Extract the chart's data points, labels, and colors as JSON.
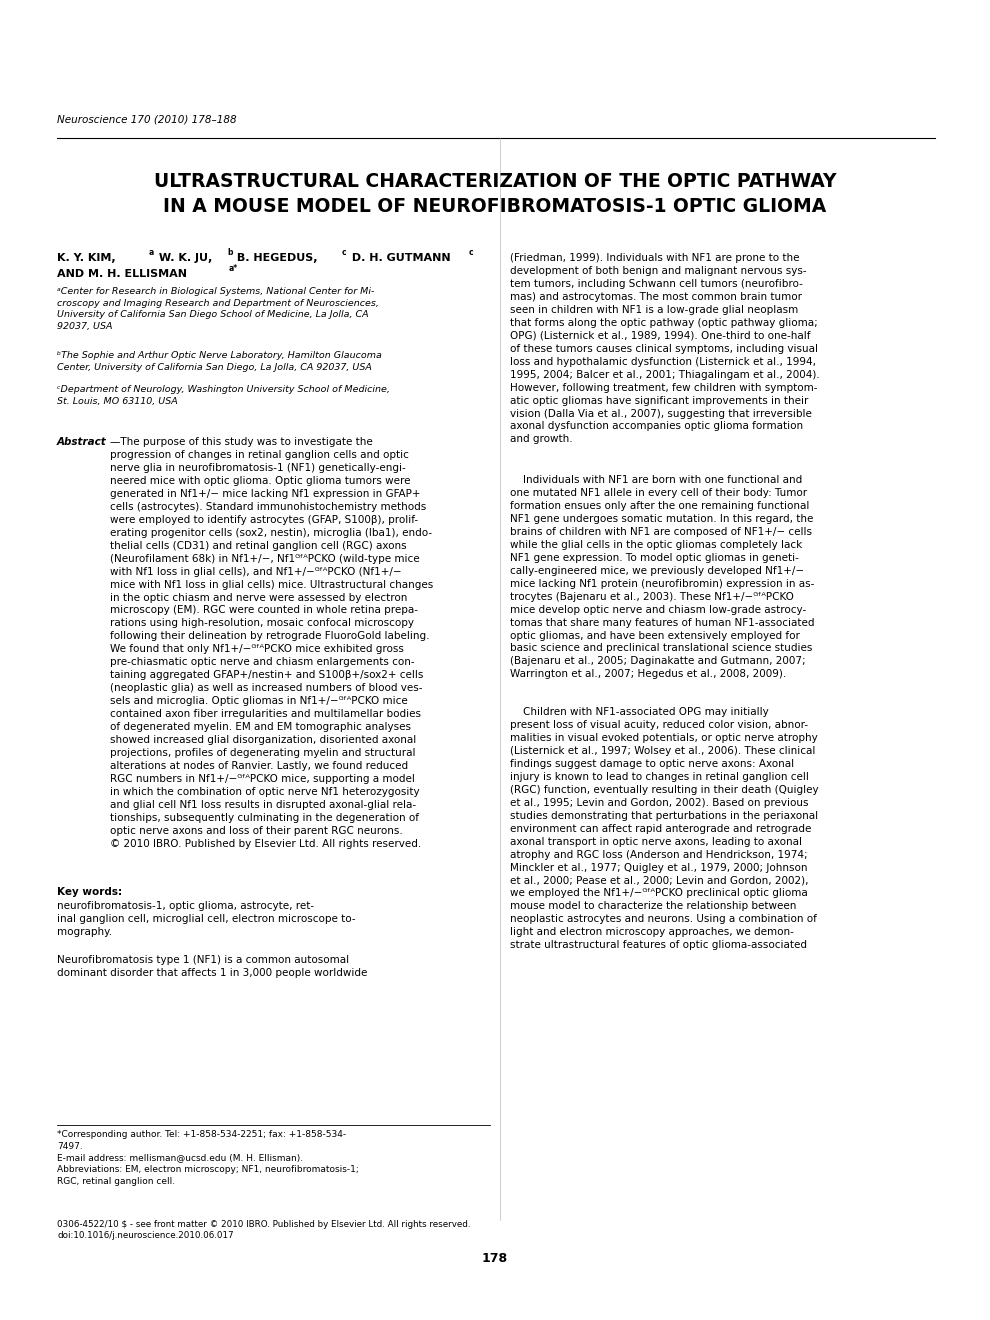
{
  "journal_line": "Neuroscience 170 (2010) 178–188",
  "title_line1": "ULTRASTRUCTURAL CHARACTERIZATION OF THE OPTIC PATHWAY",
  "title_line2": "IN A MOUSE MODEL OF NEUROFIBROMATOSIS-1 OPTIC GLIOMA",
  "page_num": "178",
  "bg_color": "#ffffff",
  "text_color": "#000000",
  "link_color": "#2222aa"
}
